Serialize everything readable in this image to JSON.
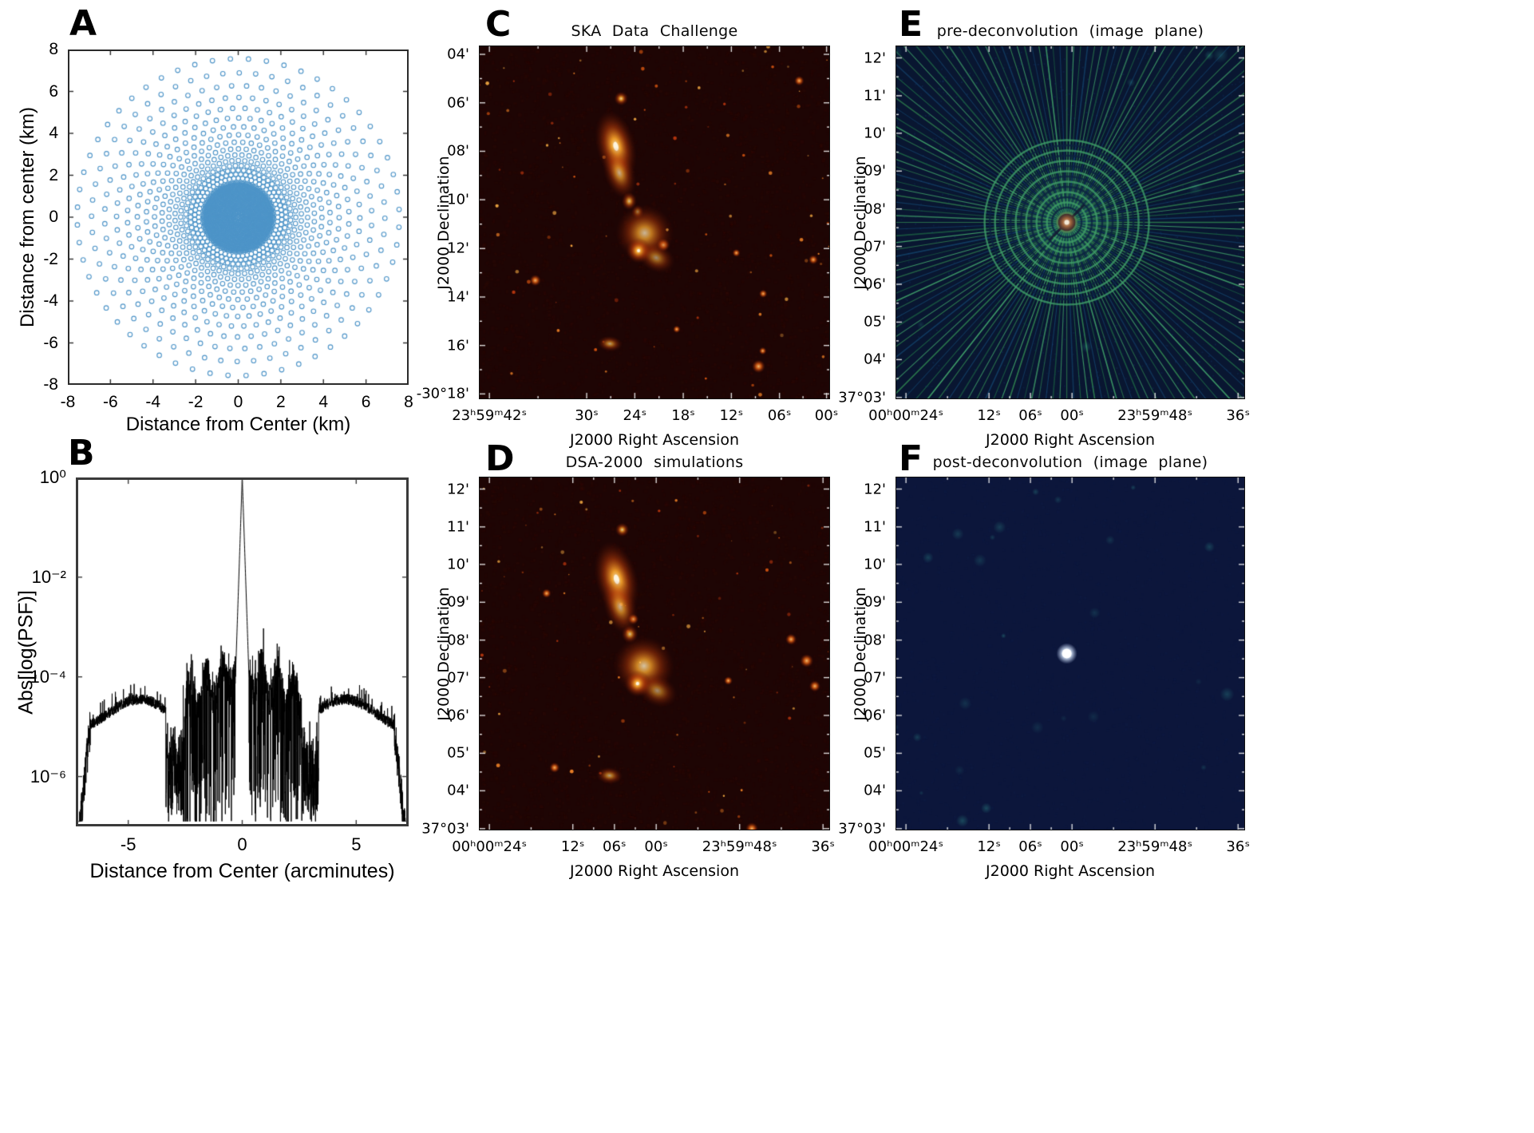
{
  "figure": {
    "background": "#ffffff",
    "panels": {
      "A": {
        "letter": "A",
        "xlabel": "Distance from Center (km)",
        "ylabel": "Distance from center (km)",
        "x_ticks": [
          {
            "label": "-8",
            "f": 0
          },
          {
            "label": "-6",
            "f": 0.125
          },
          {
            "label": "-4",
            "f": 0.25
          },
          {
            "label": "-2",
            "f": 0.375
          },
          {
            "label": "0",
            "f": 0.5
          },
          {
            "label": "2",
            "f": 0.625
          },
          {
            "label": "4",
            "f": 0.75
          },
          {
            "label": "6",
            "f": 0.875
          },
          {
            "label": "8",
            "f": 1
          }
        ],
        "y_ticks": [
          {
            "label": "8",
            "f": 0
          },
          {
            "label": "6",
            "f": 0.125
          },
          {
            "label": "4",
            "f": 0.25
          },
          {
            "label": "2",
            "f": 0.375
          },
          {
            "label": "0",
            "f": 0.5
          },
          {
            "label": "-2",
            "f": 0.625
          },
          {
            "label": "-4",
            "f": 0.75
          },
          {
            "label": "-6",
            "f": 0.875
          },
          {
            "label": "-8",
            "f": 1
          }
        ]
      },
      "B": {
        "letter": "B",
        "xlabel": "Distance from Center (arcminutes)",
        "ylabel": "Abs[log(PSF)]",
        "x_ticks": [
          {
            "label": "-5",
            "f": 0.1575
          },
          {
            "label": "0",
            "f": 0.5
          },
          {
            "label": "5",
            "f": 0.8425
          }
        ],
        "y_ticks": [
          {
            "label": "10⁰",
            "f": 0
          },
          {
            "label": "10⁻²",
            "f": 0.2857
          },
          {
            "label": "10⁻⁴",
            "f": 0.5714
          },
          {
            "label": "10⁻⁶",
            "f": 0.8571
          }
        ]
      },
      "C": {
        "letter": "C",
        "title": "SKA Data Challenge",
        "xlabel": "J2000 Right Ascension",
        "ylabel": "J2000 Declination",
        "x_ticks": [
          {
            "label": "23ʰ59ᵐ42ˢ",
            "f": 0.03
          },
          {
            "label": "30ˢ",
            "f": 0.307
          },
          {
            "label": "24ˢ",
            "f": 0.444
          },
          {
            "label": "18ˢ",
            "f": 0.582
          },
          {
            "label": "12ˢ",
            "f": 0.719
          },
          {
            "label": "06ˢ",
            "f": 0.856
          },
          {
            "label": "00ˢ",
            "f": 0.99
          }
        ],
        "y_ticks": [
          {
            "label": "04'",
            "f": 0.025
          },
          {
            "label": "06'",
            "f": 0.162
          },
          {
            "label": "08'",
            "f": 0.299
          },
          {
            "label": "10'",
            "f": 0.436
          },
          {
            "label": "12'",
            "f": 0.574
          },
          {
            "label": "14'",
            "f": 0.711
          },
          {
            "label": "16'",
            "f": 0.848
          },
          {
            "label": "-30°18'",
            "f": 0.985
          }
        ]
      },
      "D": {
        "letter": "D",
        "title": "DSA-2000 simulations",
        "xlabel": "J2000 Right Ascension",
        "ylabel": "J2000 Declination",
        "x_ticks": [
          {
            "label": "00ʰ00ᵐ24ˢ",
            "f": 0.03
          },
          {
            "label": "12ˢ",
            "f": 0.2675
          },
          {
            "label": "06ˢ",
            "f": 0.386
          },
          {
            "label": "00ˢ",
            "f": 0.505
          },
          {
            "label": "23ʰ59ᵐ48ˢ",
            "f": 0.7425
          },
          {
            "label": "36ˢ",
            "f": 0.98
          }
        ],
        "y_ticks": [
          {
            "label": "12'",
            "f": 0.035
          },
          {
            "label": "11'",
            "f": 0.142
          },
          {
            "label": "10'",
            "f": 0.248
          },
          {
            "label": "09'",
            "f": 0.355
          },
          {
            "label": "08'",
            "f": 0.462
          },
          {
            "label": "07'",
            "f": 0.568
          },
          {
            "label": "06'",
            "f": 0.675
          },
          {
            "label": "05'",
            "f": 0.782
          },
          {
            "label": "04'",
            "f": 0.888
          },
          {
            "label": "37°03'",
            "f": 0.995
          }
        ]
      },
      "E": {
        "letter": "E",
        "title": "pre-deconvolution (image plane)",
        "xlabel": "J2000 Right Ascension",
        "ylabel": "J2000 Declination",
        "x_ticks": [
          {
            "label": "00ʰ00ᵐ24ˢ",
            "f": 0.03
          },
          {
            "label": "12ˢ",
            "f": 0.2675
          },
          {
            "label": "06ˢ",
            "f": 0.386
          },
          {
            "label": "00ˢ",
            "f": 0.505
          },
          {
            "label": "23ʰ59ᵐ48ˢ",
            "f": 0.7425
          },
          {
            "label": "36ˢ",
            "f": 0.98
          }
        ],
        "y_ticks": [
          {
            "label": "12'",
            "f": 0.035
          },
          {
            "label": "11'",
            "f": 0.142
          },
          {
            "label": "10'",
            "f": 0.248
          },
          {
            "label": "09'",
            "f": 0.355
          },
          {
            "label": "08'",
            "f": 0.462
          },
          {
            "label": "07'",
            "f": 0.568
          },
          {
            "label": "06'",
            "f": 0.675
          },
          {
            "label": "05'",
            "f": 0.782
          },
          {
            "label": "04'",
            "f": 0.888
          },
          {
            "label": "37°03'",
            "f": 0.995
          }
        ]
      },
      "F": {
        "letter": "F",
        "title": "post-deconvolution (image plane)",
        "xlabel": "J2000 Right Ascension",
        "ylabel": "J2000 Declination",
        "x_ticks": [
          {
            "label": "00ʰ00ᵐ24ˢ",
            "f": 0.03
          },
          {
            "label": "12ˢ",
            "f": 0.2675
          },
          {
            "label": "06ˢ",
            "f": 0.386
          },
          {
            "label": "00ˢ",
            "f": 0.505
          },
          {
            "label": "23ʰ59ᵐ48ˢ",
            "f": 0.7425
          },
          {
            "label": "36ˢ",
            "f": 0.98
          }
        ],
        "y_ticks": [
          {
            "label": "12'",
            "f": 0.035
          },
          {
            "label": "11'",
            "f": 0.142
          },
          {
            "label": "10'",
            "f": 0.248
          },
          {
            "label": "09'",
            "f": 0.355
          },
          {
            "label": "08'",
            "f": 0.462
          },
          {
            "label": "07'",
            "f": 0.568
          },
          {
            "label": "06'",
            "f": 0.675
          },
          {
            "label": "05'",
            "f": 0.782
          },
          {
            "label": "04'",
            "f": 0.888
          },
          {
            "label": "37°03'",
            "f": 0.995
          }
        ]
      }
    }
  },
  "chart_data": [
    {
      "panel": "A",
      "type": "scatter",
      "xlabel": "Distance from Center (km)",
      "ylabel": "Distance from center (km)",
      "xlim": [
        -8,
        8
      ],
      "ylim": [
        -8,
        8
      ],
      "x_tick_values": [
        -8,
        -6,
        -4,
        -2,
        0,
        2,
        4,
        6,
        8
      ],
      "y_tick_values": [
        8,
        6,
        4,
        2,
        0,
        -2,
        -4,
        -6,
        -8
      ],
      "marker": "open-circle",
      "marker_color": "#4d94c8",
      "description": "Antenna array configuration: dense filled core of antennas inside ~1.7 km radius surrounded by concentric rings of antennas extending to ~7.5 km",
      "core": {
        "r_min": 0.09,
        "r_max": 1.72,
        "ring_spacing": 0.082,
        "point_spacing": 0.088
      },
      "outer_rings": {
        "r_start": 1.86,
        "r_growth": 1.098,
        "r_max": 7.6,
        "points_per_ring": 56
      }
    },
    {
      "panel": "B",
      "type": "line",
      "xlabel": "Distance from Center (arcminutes)",
      "ylabel": "Abs[log(PSF)]",
      "xlim": [
        -7.3,
        7.3
      ],
      "y_scale": "log",
      "ylog_top": 0,
      "ylog_bottom": -7,
      "x_tick_values": [
        -5,
        0,
        5
      ],
      "y_tick_values_log10": [
        0,
        -2,
        -4,
        -6
      ],
      "line_color": "#000000",
      "seed": 7,
      "features": {
        "central_peak": {
          "x": 0,
          "peak_value": 1.0,
          "flank_slope_log10_per_arcmin": -13.5
        },
        "inner_sidelobes": {
          "range_arcmin": [
            0.3,
            2.6
          ],
          "mean_level_log10": -4.0,
          "spikes_down_to_log10": -6.9
        },
        "nulls": {
          "at_arcmin": [
            -3,
            3
          ],
          "depth_log10": -6.5
        },
        "outer_plateau": {
          "range_arcmin": [
            3.35,
            6.65
          ],
          "level_log10": -4.6
        },
        "edge_falloff": {
          "beyond_arcmin": 6.65,
          "floor_log10": -6.9
        }
      }
    },
    {
      "panel": "C",
      "type": "image",
      "title": "SKA Data Challenge",
      "xlabel": "J2000 Right Ascension",
      "ylabel": "J2000 Declination",
      "x_tick_labels": [
        "23ʰ59ᵐ42ˢ",
        "30ˢ",
        "24ˢ",
        "18ˢ",
        "12ˢ",
        "06ˢ",
        "00ˢ"
      ],
      "y_tick_labels": [
        "04'",
        "06'",
        "08'",
        "10'",
        "12'",
        "14'",
        "16'",
        "-30°18'"
      ],
      "background": "#1e0504",
      "colormap": "dark red to orange (hot)",
      "seed": 11,
      "noise_points": 85,
      "bright_points": 9,
      "blobs": [
        {
          "x": 0.405,
          "y": 0.15,
          "rx": 0.01,
          "ry": 0.01,
          "rot": 0,
          "b": 0.95
        },
        {
          "x": 0.39,
          "y": 0.285,
          "rx": 0.028,
          "ry": 0.052,
          "rot": -14,
          "b": 1.0
        },
        {
          "x": 0.4,
          "y": 0.36,
          "rx": 0.022,
          "ry": 0.038,
          "rot": -18,
          "b": 0.75
        },
        {
          "x": 0.428,
          "y": 0.44,
          "rx": 0.011,
          "ry": 0.013,
          "rot": 0,
          "b": 0.85
        },
        {
          "x": 0.452,
          "y": 0.47,
          "rx": 0.009,
          "ry": 0.01,
          "rot": 0,
          "b": 0.6
        },
        {
          "x": 0.472,
          "y": 0.53,
          "rx": 0.042,
          "ry": 0.04,
          "rot": 20,
          "b": 0.8
        },
        {
          "x": 0.455,
          "y": 0.58,
          "rx": 0.018,
          "ry": 0.018,
          "rot": 0,
          "b": 1.0
        },
        {
          "x": 0.505,
          "y": 0.6,
          "rx": 0.028,
          "ry": 0.02,
          "rot": 25,
          "b": 0.6
        },
        {
          "x": 0.373,
          "y": 0.843,
          "rx": 0.018,
          "ry": 0.011,
          "rot": 5,
          "b": 0.7
        }
      ]
    },
    {
      "panel": "D",
      "type": "image",
      "title": "DSA-2000 simulations",
      "xlabel": "J2000 Right Ascension",
      "ylabel": "J2000 Declination",
      "x_tick_labels": [
        "00ʰ00ᵐ24ˢ",
        "12ˢ",
        "06ˢ",
        "00ˢ",
        "23ʰ59ᵐ48ˢ",
        "36ˢ"
      ],
      "y_tick_labels": [
        "12'",
        "11'",
        "10'",
        "09'",
        "08'",
        "07'",
        "06'",
        "05'",
        "04'",
        "37°03'"
      ],
      "background": "#1e0504",
      "colormap": "dark red to orange (hot)",
      "seed": 23,
      "noise_points": 75,
      "bright_points": 8,
      "blobs": [
        {
          "x": 0.408,
          "y": 0.15,
          "rx": 0.01,
          "ry": 0.01,
          "rot": 0,
          "b": 0.9
        },
        {
          "x": 0.392,
          "y": 0.29,
          "rx": 0.03,
          "ry": 0.055,
          "rot": -14,
          "b": 1.0
        },
        {
          "x": 0.402,
          "y": 0.368,
          "rx": 0.023,
          "ry": 0.04,
          "rot": -18,
          "b": 0.75
        },
        {
          "x": 0.43,
          "y": 0.445,
          "rx": 0.012,
          "ry": 0.013,
          "rot": 0,
          "b": 0.85
        },
        {
          "x": 0.47,
          "y": 0.535,
          "rx": 0.044,
          "ry": 0.042,
          "rot": 18,
          "b": 0.85
        },
        {
          "x": 0.452,
          "y": 0.585,
          "rx": 0.019,
          "ry": 0.019,
          "rot": 0,
          "b": 1.0
        },
        {
          "x": 0.508,
          "y": 0.605,
          "rx": 0.03,
          "ry": 0.022,
          "rot": 25,
          "b": 0.6
        },
        {
          "x": 0.372,
          "y": 0.845,
          "rx": 0.019,
          "ry": 0.012,
          "rot": 5,
          "b": 0.7
        }
      ]
    },
    {
      "panel": "E",
      "type": "image",
      "title": "pre-deconvolution (image plane)",
      "xlabel": "J2000 Right Ascension",
      "ylabel": "J2000 Declination",
      "x_tick_labels": [
        "00ʰ00ᵐ24ˢ",
        "12ˢ",
        "06ˢ",
        "00ˢ",
        "23ʰ59ᵐ48ˢ",
        "36ˢ"
      ],
      "y_tick_labels": [
        "12'",
        "11'",
        "10'",
        "09'",
        "08'",
        "07'",
        "06'",
        "05'",
        "04'",
        "37°03'"
      ],
      "description": "PSF sidelobe pattern: radial green rays and concentric rings around a bright central source",
      "background": "#091631",
      "seed": 31,
      "num_rays": 160,
      "ray_colors": [
        "#2e7d4e",
        "#3f9e68",
        "#1b5e43",
        "#123d63"
      ],
      "rings": {
        "r_min": 12,
        "r_max": 105,
        "step": 6.5,
        "colors": [
          "#3f9e68",
          "#0c2340"
        ]
      },
      "center": {
        "x": 0.49,
        "y": 0.5,
        "disk_color": "#a2673f",
        "disk_r": 9,
        "dot_color": "#f2e7d5",
        "dot_r": 3
      },
      "corner_blobs": 8
    },
    {
      "panel": "F",
      "type": "image",
      "title": "post-deconvolution (image plane)",
      "xlabel": "J2000 Right Ascension",
      "ylabel": "J2000 Declination",
      "x_tick_labels": [
        "00ʰ00ᵐ24ˢ",
        "12ˢ",
        "06ˢ",
        "00ˢ",
        "23ʰ59ᵐ48ˢ",
        "36ˢ"
      ],
      "y_tick_labels": [
        "12'",
        "11'",
        "10'",
        "09'",
        "08'",
        "07'",
        "06'",
        "05'",
        "04'",
        "37°03'"
      ],
      "description": "Cleaned residual image: dark field with faint teal noise blobs and a single bright white point source at center",
      "background": "#0c163b",
      "seed": 41,
      "num_blobs": 26,
      "blob_color": "#3cbeaa",
      "center_dot": {
        "color": "#ffffff",
        "r": 6,
        "glow_r": 13,
        "x": 0.49,
        "y": 0.5
      }
    }
  ]
}
